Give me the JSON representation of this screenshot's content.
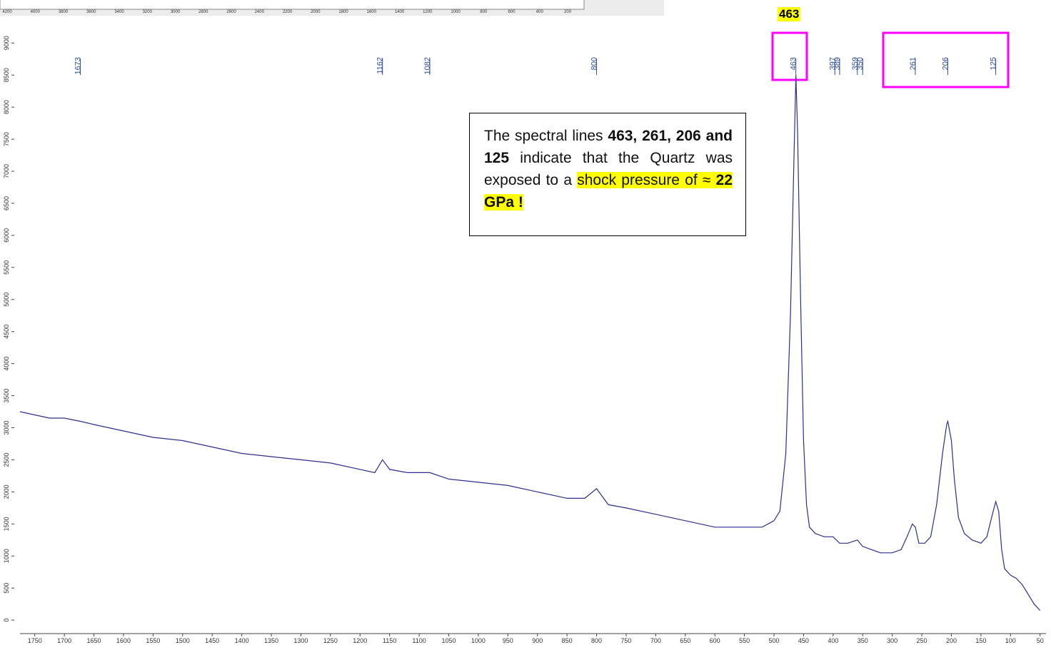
{
  "chart_data": {
    "type": "line",
    "color": "#2e2e8c",
    "x": [
      1775,
      1750,
      1725,
      1700,
      1673,
      1650,
      1600,
      1550,
      1500,
      1450,
      1400,
      1350,
      1300,
      1250,
      1200,
      1175,
      1162,
      1150,
      1120,
      1082,
      1050,
      1000,
      950,
      900,
      850,
      820,
      800,
      780,
      750,
      700,
      650,
      600,
      550,
      520,
      500,
      490,
      480,
      472,
      466,
      463,
      460,
      455,
      450,
      445,
      440,
      430,
      415,
      400,
      389,
      375,
      359,
      350,
      335,
      320,
      300,
      285,
      275,
      266,
      261,
      255,
      245,
      235,
      225,
      215,
      208,
      206,
      200,
      195,
      188,
      178,
      165,
      150,
      140,
      132,
      125,
      120,
      115,
      110,
      100,
      90,
      80,
      70,
      60,
      50
    ],
    "values": [
      3250,
      3200,
      3150,
      3150,
      3100,
      3050,
      2950,
      2850,
      2800,
      2700,
      2600,
      2550,
      2500,
      2450,
      2350,
      2300,
      2500,
      2350,
      2300,
      2300,
      2200,
      2150,
      2100,
      2000,
      1900,
      1900,
      2050,
      1800,
      1750,
      1650,
      1550,
      1450,
      1450,
      1450,
      1550,
      1700,
      2600,
      4800,
      7300,
      8500,
      7600,
      5000,
      2800,
      1800,
      1450,
      1350,
      1300,
      1300,
      1200,
      1200,
      1250,
      1150,
      1100,
      1050,
      1050,
      1100,
      1300,
      1500,
      1450,
      1200,
      1200,
      1300,
      1800,
      2600,
      3050,
      3100,
      2800,
      2200,
      1600,
      1350,
      1250,
      1200,
      1300,
      1600,
      1850,
      1700,
      1100,
      800,
      700,
      650,
      550,
      400,
      250,
      150
    ],
    "xlim": [
      1775,
      40
    ],
    "ylim": [
      -210,
      9170
    ],
    "xticks": [
      1750,
      1700,
      1650,
      1600,
      1550,
      1500,
      1450,
      1400,
      1350,
      1300,
      1250,
      1200,
      1150,
      1100,
      1050,
      1000,
      950,
      900,
      850,
      800,
      750,
      700,
      650,
      600,
      550,
      500,
      450,
      400,
      350,
      300,
      250,
      200,
      150,
      100,
      50
    ],
    "yticks": [
      0,
      500,
      1000,
      1500,
      2000,
      2500,
      3000,
      3500,
      4000,
      4500,
      5000,
      5500,
      6000,
      6500,
      7000,
      7500,
      8000,
      8500,
      9000
    ],
    "peaks": [
      1673,
      1162,
      1082,
      800,
      463,
      397,
      389,
      359,
      350,
      261,
      206,
      125
    ],
    "highlight_label": "463",
    "annotation": [
      "The spectral lines ",
      "463, 261, 206 and 125",
      " indicate that the Quartz was exposed to a ",
      "shock pressure of ≈ ",
      "22 GPa !"
    ],
    "inset": {
      "xlim": [
        4251,
        83
      ],
      "xticks": [
        4200,
        4000,
        3800,
        3600,
        3400,
        3200,
        3000,
        2800,
        2600,
        2400,
        2200,
        2000,
        1800,
        1600,
        1400,
        1200,
        1000,
        800,
        600,
        400,
        200
      ]
    }
  }
}
